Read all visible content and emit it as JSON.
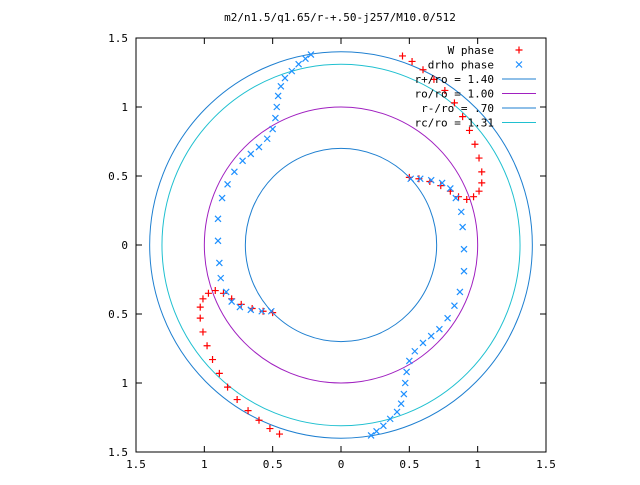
{
  "chart_data": {
    "type": "scatter",
    "title": "m2/n1.5/q1.65/r-+.50-j257/M10.0/512",
    "xlabel": "",
    "ylabel": "",
    "xlim": [
      -1.5,
      1.5
    ],
    "ylim": [
      -1.5,
      1.5
    ],
    "x_ticks": [
      {
        "value": -1.5,
        "label": "1.5"
      },
      {
        "value": -1.0,
        "label": "1"
      },
      {
        "value": -0.5,
        "label": "0.5"
      },
      {
        "value": 0.0,
        "label": "0"
      },
      {
        "value": 0.5,
        "label": "0.5"
      },
      {
        "value": 1.0,
        "label": "1"
      },
      {
        "value": 1.5,
        "label": "1.5"
      }
    ],
    "y_ticks": [
      {
        "value": 1.5,
        "label": "1.5"
      },
      {
        "value": 1.0,
        "label": "1"
      },
      {
        "value": 0.5,
        "label": "0.5"
      },
      {
        "value": 0.0,
        "label": "0"
      },
      {
        "value": -0.5,
        "label": "0.5"
      },
      {
        "value": -1.0,
        "label": "1"
      },
      {
        "value": -1.5,
        "label": "1.5"
      }
    ],
    "grid": false,
    "legend_position": "top-right",
    "series": [
      {
        "name": "W phase",
        "marker": "plus",
        "color": "#ff0000",
        "points": [
          [
            0.45,
            1.37
          ],
          [
            0.52,
            1.33
          ],
          [
            0.6,
            1.27
          ],
          [
            0.68,
            1.2
          ],
          [
            0.76,
            1.12
          ],
          [
            0.83,
            1.03
          ],
          [
            0.89,
            0.93
          ],
          [
            0.94,
            0.83
          ],
          [
            0.98,
            0.73
          ],
          [
            1.01,
            0.63
          ],
          [
            1.03,
            0.53
          ],
          [
            1.03,
            0.45
          ],
          [
            1.01,
            0.39
          ],
          [
            0.97,
            0.35
          ],
          [
            0.92,
            0.33
          ],
          [
            0.86,
            0.35
          ],
          [
            0.8,
            0.39
          ],
          [
            0.73,
            0.43
          ],
          [
            0.65,
            0.46
          ],
          [
            0.57,
            0.48
          ],
          [
            0.5,
            0.49
          ],
          [
            -0.45,
            -1.37
          ],
          [
            -0.52,
            -1.33
          ],
          [
            -0.6,
            -1.27
          ],
          [
            -0.68,
            -1.2
          ],
          [
            -0.76,
            -1.12
          ],
          [
            -0.83,
            -1.03
          ],
          [
            -0.89,
            -0.93
          ],
          [
            -0.94,
            -0.83
          ],
          [
            -0.98,
            -0.73
          ],
          [
            -1.01,
            -0.63
          ],
          [
            -1.03,
            -0.53
          ],
          [
            -1.03,
            -0.45
          ],
          [
            -1.01,
            -0.39
          ],
          [
            -0.97,
            -0.35
          ],
          [
            -0.92,
            -0.33
          ],
          [
            -0.86,
            -0.35
          ],
          [
            -0.8,
            -0.39
          ],
          [
            -0.73,
            -0.43
          ],
          [
            -0.65,
            -0.46
          ],
          [
            -0.57,
            -0.48
          ],
          [
            -0.5,
            -0.49
          ]
        ]
      },
      {
        "name": "drho phase",
        "marker": "cross",
        "color": "#1e90ff",
        "points": [
          [
            -0.22,
            1.38
          ],
          [
            -0.26,
            1.35
          ],
          [
            -0.31,
            1.31
          ],
          [
            -0.36,
            1.26
          ],
          [
            -0.41,
            1.21
          ],
          [
            -0.44,
            1.15
          ],
          [
            -0.46,
            1.08
          ],
          [
            -0.47,
            1.0
          ],
          [
            -0.48,
            0.92
          ],
          [
            -0.5,
            0.84
          ],
          [
            -0.54,
            0.77
          ],
          [
            -0.6,
            0.71
          ],
          [
            -0.66,
            0.66
          ],
          [
            -0.72,
            0.61
          ],
          [
            -0.78,
            0.53
          ],
          [
            -0.83,
            0.44
          ],
          [
            -0.87,
            0.34
          ],
          [
            -0.9,
            0.19
          ],
          [
            -0.9,
            0.03
          ],
          [
            -0.89,
            -0.13
          ],
          [
            -0.88,
            -0.24
          ],
          [
            -0.84,
            -0.34
          ],
          [
            -0.8,
            -0.41
          ],
          [
            -0.74,
            -0.45
          ],
          [
            -0.66,
            -0.47
          ],
          [
            -0.58,
            -0.48
          ],
          [
            -0.51,
            -0.48
          ],
          [
            0.22,
            -1.38
          ],
          [
            0.26,
            -1.35
          ],
          [
            0.31,
            -1.31
          ],
          [
            0.36,
            -1.26
          ],
          [
            0.41,
            -1.21
          ],
          [
            0.44,
            -1.15
          ],
          [
            0.46,
            -1.08
          ],
          [
            0.47,
            -1.0
          ],
          [
            0.48,
            -0.92
          ],
          [
            0.5,
            -0.84
          ],
          [
            0.54,
            -0.77
          ],
          [
            0.6,
            -0.71
          ],
          [
            0.66,
            -0.66
          ],
          [
            0.72,
            -0.61
          ],
          [
            0.78,
            -0.53
          ],
          [
            0.83,
            -0.44
          ],
          [
            0.87,
            -0.34
          ],
          [
            0.9,
            -0.19
          ],
          [
            0.9,
            -0.03
          ],
          [
            0.89,
            0.13
          ],
          [
            0.88,
            0.24
          ],
          [
            0.84,
            0.34
          ],
          [
            0.8,
            0.41
          ],
          [
            0.74,
            0.45
          ],
          [
            0.66,
            0.47
          ],
          [
            0.58,
            0.48
          ],
          [
            0.51,
            0.48
          ]
        ]
      }
    ],
    "circles": [
      {
        "name": "r+/ro = 1.40",
        "radius": 1.4,
        "color": "#1e7fd0"
      },
      {
        "name": "ro/ro = 1.00",
        "radius": 1.0,
        "color": "#a020c0"
      },
      {
        "name": "r-/ro = .70",
        "radius": 0.7,
        "color": "#1e7fd0"
      },
      {
        "name": "rc/ro = 1.31",
        "radius": 1.31,
        "color": "#20c0d0"
      }
    ]
  }
}
